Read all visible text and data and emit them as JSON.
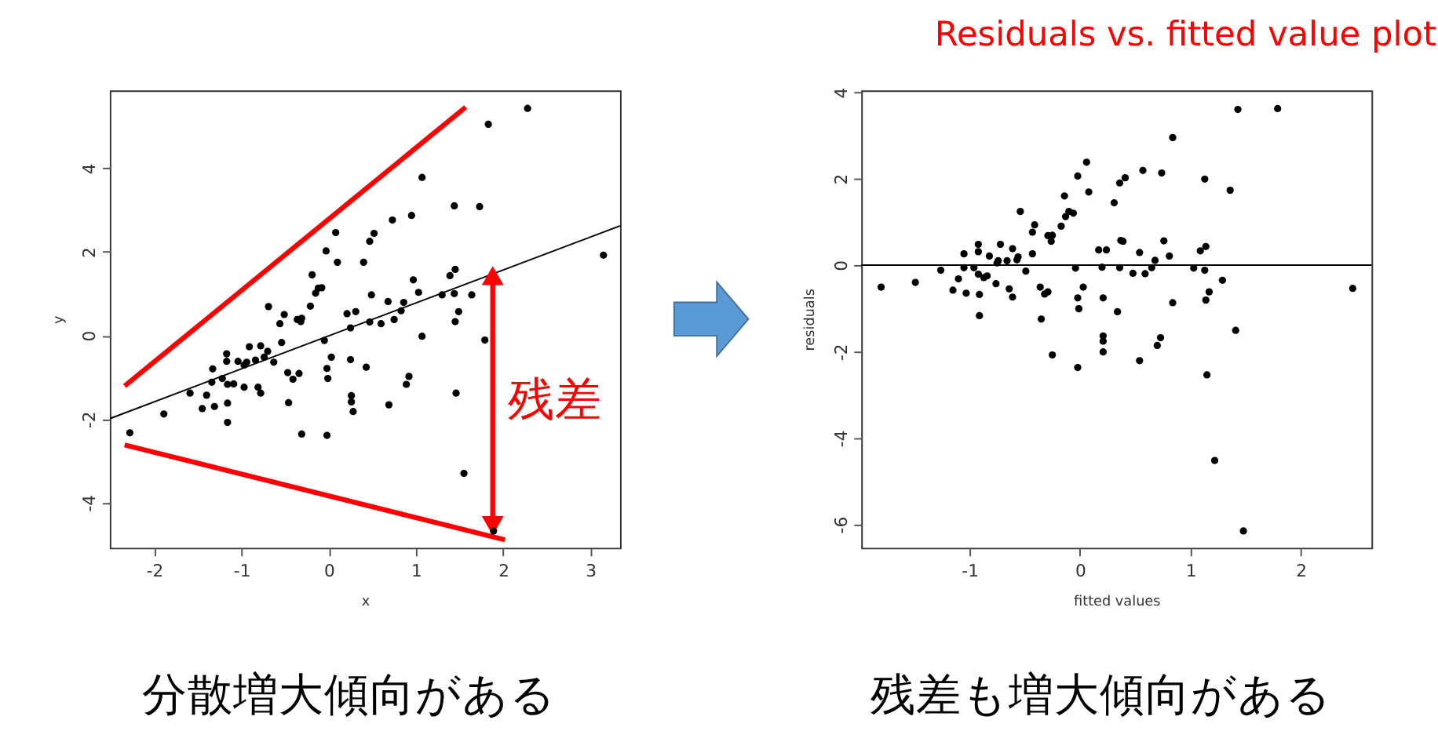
{
  "chart_data": [
    {
      "type": "scatter",
      "xlabel": "x",
      "ylabel": "y",
      "xlim": [
        -2.51,
        3.34
      ],
      "ylim": [
        -5.08,
        5.86
      ],
      "xticks": [
        -2,
        -1,
        0,
        1,
        2,
        3
      ],
      "yticks": [
        -4,
        -2,
        0,
        2,
        4
      ],
      "grid": false,
      "legend": false,
      "series": [
        {
          "color": "#000000",
          "marker": "circle",
          "x": [
            -2.28,
            -1.89,
            -1.59,
            -1.45,
            -1.4,
            -1.33,
            -1.34,
            -1.31,
            -1.22,
            -1.17,
            -1.17,
            -1.16,
            -1.16,
            -1.16,
            -1.09,
            -1.04,
            -0.97,
            -0.97,
            -0.91,
            -0.94,
            -0.84,
            -0.81,
            -0.78,
            -0.78,
            -0.74,
            -0.7,
            -0.69,
            -0.63,
            -0.56,
            -0.54,
            -0.51,
            -0.47,
            -0.46,
            -0.41,
            -0.36,
            -0.34,
            -0.32,
            -0.31,
            -0.31,
            -0.21,
            -0.19,
            -0.15,
            -0.12,
            -0.08,
            -0.05,
            -0.03,
            -0.02,
            -0.02,
            -0.01,
            0.03,
            0.08,
            0.1,
            0.21,
            0.25,
            0.25,
            0.26,
            0.26,
            0.28,
            0.31,
            0.4,
            0.43,
            0.47,
            0.47,
            0.49,
            0.52,
            0.6,
            0.68,
            0.69,
            0.73,
            0.75,
            0.83,
            0.86,
            0.89,
            0.92,
            0.95,
            0.97,
            1.03,
            1.07,
            1.07,
            1.3,
            1.39,
            1.44,
            1.44,
            1.45,
            1.45,
            1.46,
            1.49,
            1.55,
            1.64,
            1.73,
            1.79,
            1.83,
            1.89,
            2.28,
            3.15
          ],
          "values": [
            -2.33,
            -1.88,
            -1.38,
            -1.75,
            -1.43,
            -0.8,
            -1.12,
            -1.7,
            -1.03,
            -0.44,
            -0.62,
            -1.17,
            -1.62,
            -2.08,
            -1.16,
            -0.62,
            -1.24,
            -0.71,
            -0.27,
            -0.64,
            -0.59,
            -1.24,
            -0.25,
            -1.38,
            -0.52,
            -0.38,
            0.69,
            -0.64,
            0.28,
            -0.17,
            0.5,
            -0.89,
            -1.61,
            -1.05,
            0.38,
            -0.91,
            0.33,
            -2.36,
            0.41,
            0.7,
            1.45,
            1.01,
            1.13,
            1.14,
            -0.12,
            2.02,
            -2.39,
            -0.79,
            -1.03,
            -0.52,
            2.46,
            1.75,
            0.52,
            0.18,
            -0.58,
            -1.44,
            -1.59,
            -1.82,
            0.57,
            1.75,
            -0.76,
            2.25,
            0.32,
            0.97,
            2.44,
            0.28,
            0.81,
            -1.66,
            2.76,
            0.38,
            0.59,
            0.79,
            -1.17,
            -0.98,
            2.87,
            1.33,
            1.03,
            3.78,
            -0.02,
            0.97,
            1.43,
            3.1,
            1.0,
            1.58,
            0.33,
            -1.38,
            0.57,
            -3.3,
            0.97,
            3.08,
            -0.11,
            5.05,
            -4.68,
            5.43,
            1.92
          ]
        },
        {
          "type": "line",
          "color": "#000000",
          "x": [
            -2.51,
            3.34
          ],
          "values": [
            -1.99,
            2.62
          ]
        },
        {
          "type": "line",
          "color": "#ff0000",
          "x": [
            -2.34,
            1.57
          ],
          "values": [
            -1.21,
            5.46
          ]
        },
        {
          "type": "line",
          "color": "#ff0000",
          "x": [
            -2.34,
            2.02
          ],
          "values": [
            -2.62,
            -4.89
          ]
        },
        {
          "type": "line",
          "name": "残差",
          "color": "#ff0000",
          "marker": "triangle",
          "x": [
            1.88,
            1.88
          ],
          "values": [
            1.43,
            -4.55
          ]
        }
      ],
      "annotations": [
        "分散増大傾向がある"
      ]
    },
    {
      "type": "scatter",
      "title": "Residuals vs. fitted value plot",
      "xlabel": "fitted values",
      "ylabel": "residuals",
      "xlim": [
        -1.98,
        2.64
      ],
      "ylim": [
        -6.54,
        4.04
      ],
      "xticks": [
        -1,
        0,
        1,
        2
      ],
      "yticks": [
        -6,
        -4,
        -2,
        0,
        2,
        4
      ],
      "grid": false,
      "legend": false,
      "series": [
        {
          "color": "#000000",
          "marker": "circle",
          "x": [
            -1.8,
            -1.49,
            -1.26,
            -1.15,
            -1.1,
            -1.05,
            -1.05,
            -1.03,
            -0.96,
            -0.92,
            -0.92,
            -0.92,
            -0.91,
            -0.91,
            -0.87,
            -0.84,
            -0.82,
            -0.76,
            -0.75,
            -0.74,
            -0.72,
            -0.66,
            -0.64,
            -0.61,
            -0.61,
            -0.57,
            -0.56,
            -0.54,
            -0.49,
            -0.43,
            -0.43,
            -0.41,
            -0.36,
            -0.35,
            -0.32,
            -0.29,
            -0.29,
            -0.26,
            -0.25,
            -0.25,
            -0.17,
            -0.14,
            -0.13,
            -0.1,
            -0.06,
            -0.04,
            -0.02,
            -0.02,
            -0.02,
            -0.01,
            0.03,
            0.06,
            0.08,
            0.17,
            0.2,
            0.21,
            0.21,
            0.21,
            0.21,
            0.24,
            0.31,
            0.34,
            0.36,
            0.36,
            0.37,
            0.39,
            0.41,
            0.48,
            0.54,
            0.54,
            0.57,
            0.59,
            0.65,
            0.68,
            0.7,
            0.73,
            0.74,
            0.76,
            0.81,
            0.84,
            0.84,
            1.03,
            1.09,
            1.13,
            1.13,
            1.14,
            1.14,
            1.15,
            1.17,
            1.22,
            1.29,
            1.36,
            1.41,
            1.43,
            1.48,
            1.79,
            2.47
          ],
          "values": [
            -0.51,
            -0.4,
            -0.12,
            -0.58,
            -0.32,
            0.26,
            -0.06,
            -0.65,
            -0.06,
            0.48,
            0.31,
            -0.21,
            -0.68,
            -1.17,
            -0.29,
            -0.25,
            0.21,
            -0.43,
            0.05,
            0.1,
            0.48,
            0.1,
            -0.55,
            -0.74,
            0.38,
            0.12,
            0.19,
            1.24,
            -0.14,
            0.26,
            0.76,
            0.93,
            -0.51,
            -1.25,
            -0.67,
            0.68,
            -0.62,
            0.55,
            0.69,
            -2.08,
            0.9,
            1.6,
            1.12,
            1.24,
            1.2,
            -0.07,
            2.06,
            -0.76,
            -2.37,
            -1.01,
            -0.51,
            2.38,
            1.69,
            0.35,
            -0.05,
            -0.76,
            -1.64,
            -1.76,
            -2.01,
            0.35,
            1.44,
            -1.08,
            1.9,
            -0.06,
            0.57,
            0.55,
            2.02,
            -0.19,
            0.29,
            -2.21,
            2.19,
            -0.2,
            -0.06,
            0.11,
            -1.86,
            -1.68,
            2.13,
            0.56,
            0.21,
            -0.87,
            2.95,
            -0.07,
            0.33,
            -0.12,
            1.99,
            0.43,
            -0.81,
            -2.54,
            -0.62,
            -4.52,
            -0.35,
            1.73,
            -1.51,
            3.6,
            -6.15,
            3.62,
            -0.54
          ]
        }
      ],
      "ref_lines": [
        {
          "axis": "y",
          "value": 0,
          "color": "#000000"
        }
      ],
      "annotations": [
        "残差も増大傾向がある"
      ]
    }
  ]
}
